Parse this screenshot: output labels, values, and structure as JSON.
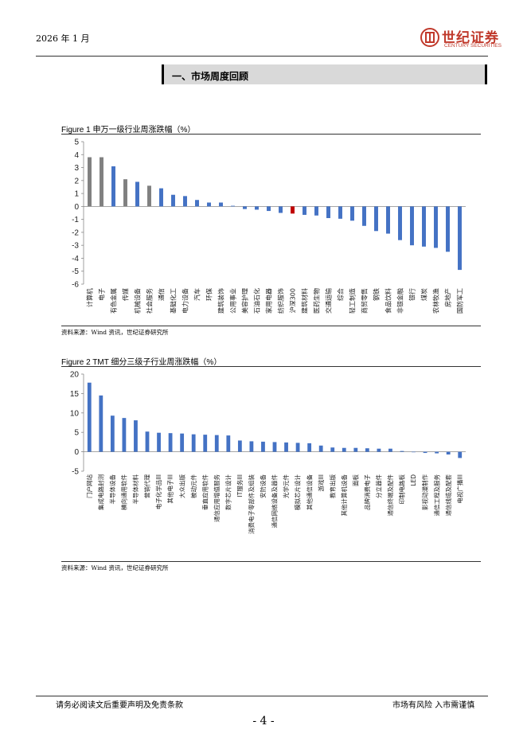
{
  "header": {
    "date": "2026 年 1 月"
  },
  "logo": {
    "cn": "世纪证券",
    "en": "CENTURY SECURITIES"
  },
  "section": {
    "title": "一、市场周度回顾"
  },
  "colors": {
    "blue": "#4472c4",
    "gray": "#808080",
    "red": "#c00000",
    "brand": "#c0392b"
  },
  "figure1": {
    "title": "Figure 1  申万一级行业周涨跌幅（%）",
    "source": "资料来源：Wind 资讯，世纪证券研究所"
  },
  "figure2": {
    "title": "Figure 2 TMT 细分三级子行业周涨跌幅（%）",
    "source": "资料来源：Wind 资讯，世纪证券研究所"
  },
  "chart_data": [
    {
      "type": "bar",
      "title": "申万一级行业周涨跌幅（%）",
      "ylim": [
        -6,
        5
      ],
      "yticks": [
        5,
        4,
        3,
        2,
        1,
        0,
        -1,
        -2,
        -3,
        -4,
        -5,
        -6
      ],
      "categories": [
        "计算机",
        "电子",
        "有色金属",
        "传媒",
        "机械设备",
        "社会服务",
        "通信",
        "基础化工",
        "电力设备",
        "汽车",
        "环保",
        "建筑装饰",
        "公用事业",
        "美容护理",
        "石油石化",
        "家用电器",
        "纺织服饰",
        "沪深300",
        "建筑材料",
        "医药生物",
        "交通运输",
        "综合",
        "轻工制造",
        "商贸零售",
        "钢铁",
        "食品饮料",
        "非银金融",
        "银行",
        "煤炭",
        "农林牧渔",
        "房地产",
        "国防军工"
      ],
      "values": [
        3.8,
        3.8,
        3.1,
        2.1,
        1.9,
        1.6,
        1.4,
        0.9,
        0.8,
        0.5,
        0.3,
        0.3,
        0.05,
        -0.2,
        -0.25,
        -0.35,
        -0.5,
        -0.55,
        -0.65,
        -0.7,
        -0.9,
        -0.95,
        -1.1,
        -1.5,
        -1.9,
        -2.1,
        -2.6,
        -3.0,
        -3.1,
        -3.2,
        -3.5,
        -4.9
      ],
      "colors": [
        "gray",
        "gray",
        "blue",
        "gray",
        "blue",
        "gray",
        "blue",
        "blue",
        "blue",
        "blue",
        "blue",
        "blue",
        "blue",
        "blue",
        "blue",
        "blue",
        "blue",
        "red",
        "blue",
        "blue",
        "blue",
        "blue",
        "blue",
        "blue",
        "blue",
        "blue",
        "blue",
        "blue",
        "blue",
        "blue",
        "blue",
        "blue"
      ]
    },
    {
      "type": "bar",
      "title": "TMT 细分三级子行业周涨跌幅（%）",
      "ylim": [
        -5,
        20
      ],
      "yticks": [
        20,
        15,
        10,
        5,
        0,
        -5
      ],
      "categories": [
        "门户网站",
        "集成电路封测",
        "半导体设备",
        "横向通用软件",
        "半导体材料",
        "营销代理",
        "电子化学品III",
        "其他电子III",
        "大众出版",
        "被动元件",
        "垂直应用软件",
        "通信应用增值服务",
        "数字芯片设计",
        "IT服务III",
        "消费电子零部件及组装",
        "安防设备",
        "通信网络设备及器件",
        "光学元件",
        "模拟芯片设计",
        "其他通信设备",
        "游戏III",
        "教育出版",
        "其他计算机设备",
        "面板",
        "品牌消费电子",
        "分立器件",
        "通信终端及配件",
        "印制电路板",
        "LED",
        "影视动漫制作",
        "通信工程及服务",
        "通信线缆及配套",
        "电视广播III"
      ],
      "values": [
        17.8,
        14.5,
        9.3,
        8.7,
        8.1,
        5.2,
        4.9,
        4.8,
        4.7,
        4.5,
        4.4,
        4.3,
        4.2,
        2.9,
        2.7,
        2.6,
        2.5,
        2.4,
        2.3,
        2.2,
        1.6,
        1.1,
        1.0,
        1.0,
        0.9,
        0.8,
        0.8,
        0.2,
        -0.1,
        -0.3,
        -0.4,
        -0.7,
        -1.6
      ],
      "color": "blue"
    }
  ],
  "footer": {
    "left": "请务必阅读文后重要声明及免责条款",
    "right": "市场有风险  入市需谨慎",
    "page": "- 4 -"
  }
}
